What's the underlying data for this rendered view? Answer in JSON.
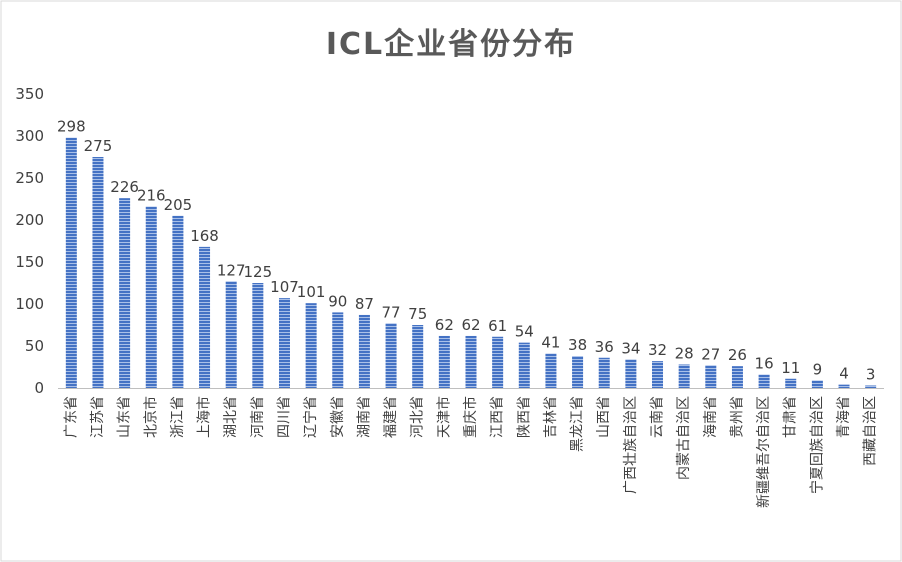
{
  "chart_data": {
    "type": "bar",
    "title": "ICL企业省份分布",
    "xlabel": "",
    "ylabel": "",
    "ylim": [
      0,
      350
    ],
    "yticks": [
      0,
      50,
      100,
      150,
      200,
      250,
      300,
      350
    ],
    "grid": false,
    "legend": "none",
    "bar_color": "#4472c4",
    "categories": [
      "广东省",
      "江苏省",
      "山东省",
      "北京市",
      "浙江省",
      "上海市",
      "湖北省",
      "河南省",
      "四川省",
      "辽宁省",
      "安徽省",
      "湖南省",
      "福建省",
      "河北省",
      "天津市",
      "重庆市",
      "江西省",
      "陕西省",
      "吉林省",
      "黑龙江省",
      "山西省",
      "广西壮族自治区",
      "云南省",
      "内蒙古自治区",
      "海南省",
      "贵州省",
      "新疆维吾尔自治区",
      "甘肃省",
      "宁夏回族自治区",
      "青海省",
      "西藏自治区"
    ],
    "values": [
      298,
      275,
      226,
      216,
      205,
      168,
      127,
      125,
      107,
      101,
      90,
      87,
      77,
      75,
      62,
      62,
      61,
      54,
      41,
      38,
      36,
      34,
      32,
      28,
      27,
      26,
      16,
      11,
      9,
      4,
      3
    ]
  }
}
